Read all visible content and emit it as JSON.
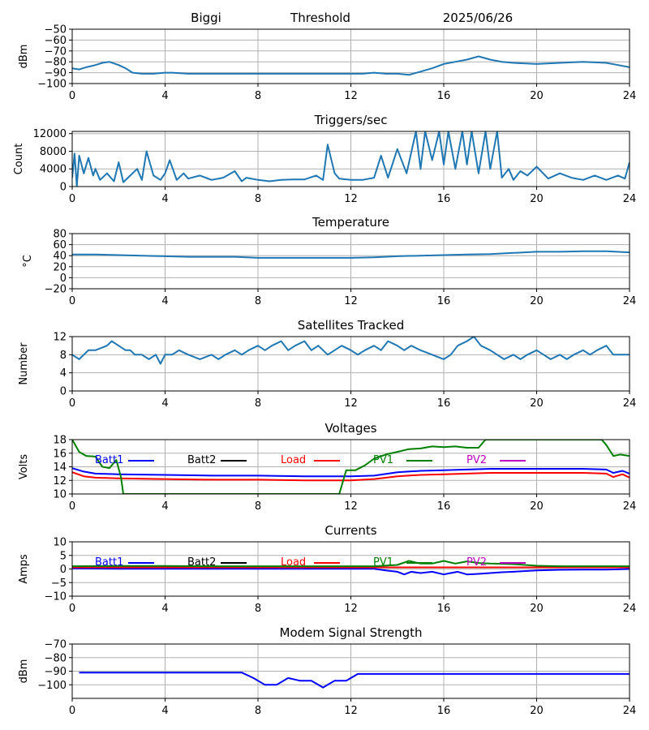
{
  "header": {
    "station": "Biggi",
    "mode": "Threshold",
    "date": "2025/06/26"
  },
  "colors": {
    "default_line": "#1f77b4",
    "batt1": "#0000ff",
    "batt2": "#000000",
    "load": "#ff0000",
    "pv1": "#008000",
    "pv2": "#bf00bf",
    "grid": "#b0b0b0"
  },
  "chart_data": [
    {
      "type": "line",
      "title": "",
      "xlabel": "",
      "ylabel": "dBm",
      "xlim": [
        0,
        24
      ],
      "ylim": [
        -100,
        -50
      ],
      "xticks": [
        0,
        4,
        8,
        12,
        16,
        20,
        24
      ],
      "yticks": [
        -100,
        -90,
        -80,
        -70,
        -60,
        -50
      ],
      "grid": true,
      "series": [
        {
          "color_key": "default_line",
          "x": [
            0,
            0.3,
            0.6,
            0.8,
            1.0,
            1.3,
            1.6,
            2.0,
            2.3,
            2.6,
            3.0,
            3.5,
            4.0,
            4.3,
            5,
            6,
            7,
            8,
            9,
            10,
            11,
            12,
            12.5,
            13,
            13.5,
            14,
            14.5,
            15,
            15.5,
            16,
            16.5,
            17,
            17.5,
            18,
            18.5,
            19,
            20,
            21,
            22,
            23,
            23.5,
            24
          ],
          "y": [
            -86,
            -87,
            -85,
            -84,
            -83,
            -81,
            -80,
            -83,
            -86,
            -90,
            -91,
            -91,
            -90,
            -90,
            -91,
            -91,
            -91,
            -91,
            -91,
            -91,
            -91,
            -91,
            -91,
            -90,
            -91,
            -91,
            -92,
            -89,
            -86,
            -82,
            -80,
            -78,
            -75,
            -78,
            -80,
            -81,
            -82,
            -81,
            -80,
            -81,
            -83,
            -85
          ]
        }
      ]
    },
    {
      "type": "line",
      "title": "Triggers/sec",
      "xlabel": "",
      "ylabel": "Count",
      "xlim": [
        0,
        24
      ],
      "ylim": [
        0,
        12500
      ],
      "xticks": [
        0,
        4,
        8,
        12,
        16,
        20,
        24
      ],
      "yticks": [
        0,
        4000,
        8000,
        12000
      ],
      "grid": true,
      "series": [
        {
          "color_key": "default_line",
          "x": [
            0,
            0.1,
            0.2,
            0.3,
            0.5,
            0.7,
            0.9,
            1.0,
            1.2,
            1.5,
            1.8,
            2.0,
            2.2,
            2.5,
            2.8,
            3.0,
            3.2,
            3.5,
            3.8,
            4.0,
            4.2,
            4.5,
            4.8,
            5.0,
            5.5,
            6.0,
            6.5,
            7.0,
            7.3,
            7.5,
            8.0,
            8.5,
            9.0,
            9.5,
            10.0,
            10.5,
            10.8,
            11.0,
            11.3,
            11.5,
            12.0,
            12.5,
            13.0,
            13.3,
            13.6,
            14.0,
            14.4,
            14.8,
            15.0,
            15.2,
            15.5,
            15.8,
            16.0,
            16.2,
            16.5,
            16.8,
            17.0,
            17.2,
            17.5,
            17.8,
            18.0,
            18.3,
            18.5,
            18.8,
            19.0,
            19.3,
            19.6,
            20.0,
            20.5,
            21.0,
            21.5,
            22.0,
            22.5,
            23.0,
            23.5,
            23.8,
            24.0
          ],
          "y": [
            2000,
            7500,
            0,
            7000,
            3000,
            6500,
            2500,
            4000,
            1500,
            3000,
            1200,
            5500,
            1000,
            2500,
            4000,
            1500,
            8000,
            2500,
            1500,
            3000,
            6000,
            1500,
            3000,
            1800,
            2500,
            1500,
            2000,
            3500,
            1200,
            2000,
            1500,
            1200,
            1500,
            1600,
            1600,
            2500,
            1500,
            9500,
            3000,
            1800,
            1500,
            1500,
            2000,
            7000,
            2000,
            8500,
            3000,
            12500,
            4000,
            12500,
            6000,
            12500,
            5000,
            12500,
            4000,
            12500,
            5000,
            12500,
            3000,
            12500,
            4000,
            12500,
            2000,
            4000,
            1500,
            3500,
            2500,
            4500,
            1800,
            3000,
            2000,
            1500,
            2500,
            1500,
            2500,
            1800,
            5500
          ]
        }
      ]
    },
    {
      "type": "line",
      "title": "Temperature",
      "xlabel": "",
      "ylabel": "°C",
      "xlim": [
        0,
        24
      ],
      "ylim": [
        -20,
        80
      ],
      "xticks": [
        0,
        4,
        8,
        12,
        16,
        20,
        24
      ],
      "yticks": [
        -20,
        0,
        20,
        40,
        60,
        80
      ],
      "grid": true,
      "series": [
        {
          "color_key": "default_line",
          "x": [
            0,
            1,
            2,
            3,
            4,
            5,
            6,
            7,
            8,
            9,
            10,
            11,
            12,
            13,
            14,
            15,
            16,
            17,
            18,
            19,
            20,
            21,
            22,
            23,
            24
          ],
          "y": [
            42,
            42,
            41,
            40,
            39,
            38,
            38,
            38,
            36,
            36,
            36,
            36,
            36,
            37,
            39,
            40,
            41,
            42,
            43,
            45,
            47,
            47,
            48,
            48,
            46
          ]
        }
      ]
    },
    {
      "type": "line",
      "title": "Satellites Tracked",
      "xlabel": "",
      "ylabel": "Number",
      "xlim": [
        0,
        24
      ],
      "ylim": [
        0,
        12
      ],
      "xticks": [
        0,
        4,
        8,
        12,
        16,
        20,
        24
      ],
      "yticks": [
        0,
        4,
        8,
        12
      ],
      "grid": true,
      "series": [
        {
          "color_key": "default_line",
          "x": [
            0,
            0.3,
            0.5,
            0.7,
            1.0,
            1.5,
            1.7,
            2.0,
            2.3,
            2.5,
            2.7,
            3.0,
            3.3,
            3.6,
            3.8,
            4.0,
            4.3,
            4.6,
            5.0,
            5.5,
            6.0,
            6.3,
            6.6,
            7.0,
            7.3,
            7.6,
            8.0,
            8.3,
            8.6,
            9.0,
            9.3,
            9.6,
            10.0,
            10.3,
            10.6,
            11.0,
            11.3,
            11.6,
            12.0,
            12.3,
            12.6,
            13.0,
            13.3,
            13.6,
            14.0,
            14.3,
            14.6,
            15.0,
            15.5,
            16.0,
            16.3,
            16.6,
            17.0,
            17.3,
            17.6,
            18.0,
            18.3,
            18.6,
            19.0,
            19.3,
            19.6,
            20.0,
            20.3,
            20.6,
            21.0,
            21.3,
            21.6,
            22.0,
            22.3,
            22.6,
            23.0,
            23.3,
            23.6,
            24.0
          ],
          "y": [
            8,
            7,
            8,
            9,
            9,
            10,
            11,
            10,
            9,
            9,
            8,
            8,
            7,
            8,
            6,
            8,
            8,
            9,
            8,
            7,
            8,
            7,
            8,
            9,
            8,
            9,
            10,
            9,
            10,
            11,
            9,
            10,
            11,
            9,
            10,
            8,
            9,
            10,
            9,
            8,
            9,
            10,
            9,
            11,
            10,
            9,
            10,
            9,
            8,
            7,
            8,
            10,
            11,
            12,
            10,
            9,
            8,
            7,
            8,
            7,
            8,
            9,
            8,
            7,
            8,
            7,
            8,
            9,
            8,
            9,
            10,
            8,
            8,
            8
          ]
        }
      ]
    },
    {
      "type": "line",
      "title": "Voltages",
      "xlabel": "",
      "ylabel": "Volts",
      "xlim": [
        0,
        24
      ],
      "ylim": [
        10,
        18
      ],
      "xticks": [
        0,
        4,
        8,
        12,
        16,
        20,
        24
      ],
      "yticks": [
        10,
        12,
        14,
        16,
        18
      ],
      "grid": true,
      "legend": [
        "Batt1",
        "Batt2",
        "Load",
        "PV1",
        "PV2"
      ],
      "legend_placement": "top, single row",
      "series": [
        {
          "name": "Batt1",
          "color_key": "batt1",
          "x": [
            0,
            0.5,
            1,
            2,
            4,
            6,
            8,
            10,
            12,
            13,
            14,
            15,
            16,
            17,
            18,
            20,
            22,
            23,
            23.3,
            23.7,
            24
          ],
          "y": [
            13.8,
            13.3,
            13.0,
            12.9,
            12.8,
            12.7,
            12.7,
            12.6,
            12.6,
            12.7,
            13.2,
            13.4,
            13.5,
            13.6,
            13.7,
            13.7,
            13.7,
            13.6,
            13.1,
            13.4,
            13.0
          ]
        },
        {
          "name": "Load",
          "color_key": "load",
          "x": [
            0,
            0.5,
            1,
            2,
            4,
            6,
            8,
            10,
            12,
            13,
            14,
            15,
            16,
            17,
            18,
            20,
            22,
            23,
            23.3,
            23.7,
            24
          ],
          "y": [
            13.2,
            12.6,
            12.4,
            12.3,
            12.2,
            12.1,
            12.1,
            12.0,
            12.0,
            12.2,
            12.6,
            12.8,
            12.9,
            13.0,
            13.1,
            13.1,
            13.1,
            13.0,
            12.5,
            12.9,
            12.4
          ]
        },
        {
          "name": "PV1",
          "color_key": "pv1",
          "x": [
            0,
            0.3,
            0.6,
            1.0,
            1.3,
            1.6,
            1.9,
            2.1,
            2.2,
            11.5,
            11.8,
            12.2,
            12.6,
            13.0,
            13.5,
            14.0,
            14.5,
            15.0,
            15.5,
            16.0,
            16.5,
            17.0,
            17.5,
            17.8,
            22.8,
            23.0,
            23.3,
            23.6,
            24.0
          ],
          "y": [
            18.0,
            16.2,
            15.6,
            15.5,
            14.0,
            13.8,
            15.0,
            12.5,
            10.0,
            10.0,
            13.5,
            13.5,
            14.2,
            15.2,
            15.8,
            16.2,
            16.6,
            16.7,
            17.0,
            16.9,
            17.0,
            16.8,
            16.8,
            18.0,
            18.0,
            17.2,
            15.6,
            15.8,
            15.6
          ]
        }
      ]
    },
    {
      "type": "line",
      "title": "Currents",
      "xlabel": "",
      "ylabel": "Amps",
      "xlim": [
        0,
        24
      ],
      "ylim": [
        -10,
        10
      ],
      "xticks": [
        0,
        4,
        8,
        12,
        16,
        20,
        24
      ],
      "yticks": [
        -10,
        -5,
        0,
        5,
        10
      ],
      "grid": true,
      "legend": [
        "Batt1",
        "Batt2",
        "Load",
        "PV1",
        "PV2"
      ],
      "legend_placement": "top, single row",
      "series": [
        {
          "name": "Batt1",
          "color_key": "batt1",
          "x": [
            0,
            2,
            4,
            6,
            8,
            10,
            12,
            13,
            13.5,
            14.0,
            14.3,
            14.6,
            15.0,
            15.5,
            16.0,
            16.3,
            16.6,
            17.0,
            17.5,
            18.0,
            18.5,
            19.0,
            20.0,
            21.0,
            22.0,
            23.0,
            24.0
          ],
          "y": [
            0.2,
            0.1,
            0.1,
            0.1,
            0.1,
            0.1,
            0.1,
            0.1,
            -0.5,
            -1.0,
            -2.0,
            -1.0,
            -1.5,
            -1.0,
            -2.0,
            -1.5,
            -1.0,
            -2.0,
            -1.8,
            -1.5,
            -1.2,
            -1.0,
            -0.5,
            -0.3,
            -0.2,
            -0.2,
            0.0
          ]
        },
        {
          "name": "Load",
          "color_key": "load",
          "x": [
            0,
            2,
            4,
            6,
            8,
            10,
            12,
            14,
            16,
            18,
            20,
            22,
            24
          ],
          "y": [
            0.6,
            0.6,
            0.6,
            0.6,
            0.6,
            0.6,
            0.6,
            0.6,
            0.6,
            0.6,
            0.6,
            0.6,
            0.6
          ]
        },
        {
          "name": "PV1",
          "color_key": "pv1",
          "x": [
            0,
            2,
            4,
            6,
            8,
            10,
            12,
            13,
            14,
            14.5,
            15.0,
            15.5,
            16.0,
            16.5,
            17.0,
            17.5,
            18.0,
            19.0,
            20.0,
            21.0,
            22.0,
            23.0,
            24.0
          ],
          "y": [
            1.0,
            1.1,
            1.1,
            1.0,
            1.0,
            1.0,
            1.0,
            1.0,
            1.5,
            3.0,
            2.0,
            2.0,
            3.0,
            2.0,
            2.8,
            2.2,
            2.0,
            1.8,
            1.2,
            1.0,
            1.0,
            1.0,
            1.0
          ]
        }
      ]
    },
    {
      "type": "line",
      "title": "Modem Signal Strength",
      "xlabel": "",
      "ylabel": "dBm",
      "xlim": [
        0,
        24
      ],
      "ylim": [
        -110,
        -70
      ],
      "xticks": [
        0,
        4,
        8,
        12,
        16,
        20,
        24
      ],
      "yticks": [
        -100,
        -90,
        -80,
        -70
      ],
      "grid": true,
      "series": [
        {
          "color_key": "batt1",
          "x": [
            0.3,
            2,
            4,
            6,
            7.3,
            7.8,
            8.3,
            8.8,
            9.3,
            9.8,
            10.3,
            10.8,
            11.3,
            11.8,
            12.3,
            14,
            16,
            18,
            20,
            22,
            24
          ],
          "y": [
            -91,
            -91,
            -91,
            -91,
            -91,
            -95,
            -100,
            -100,
            -95,
            -97,
            -97,
            -102,
            -97,
            -97,
            -92,
            -92,
            -92,
            -92,
            -92,
            -92,
            -92
          ]
        }
      ]
    }
  ]
}
